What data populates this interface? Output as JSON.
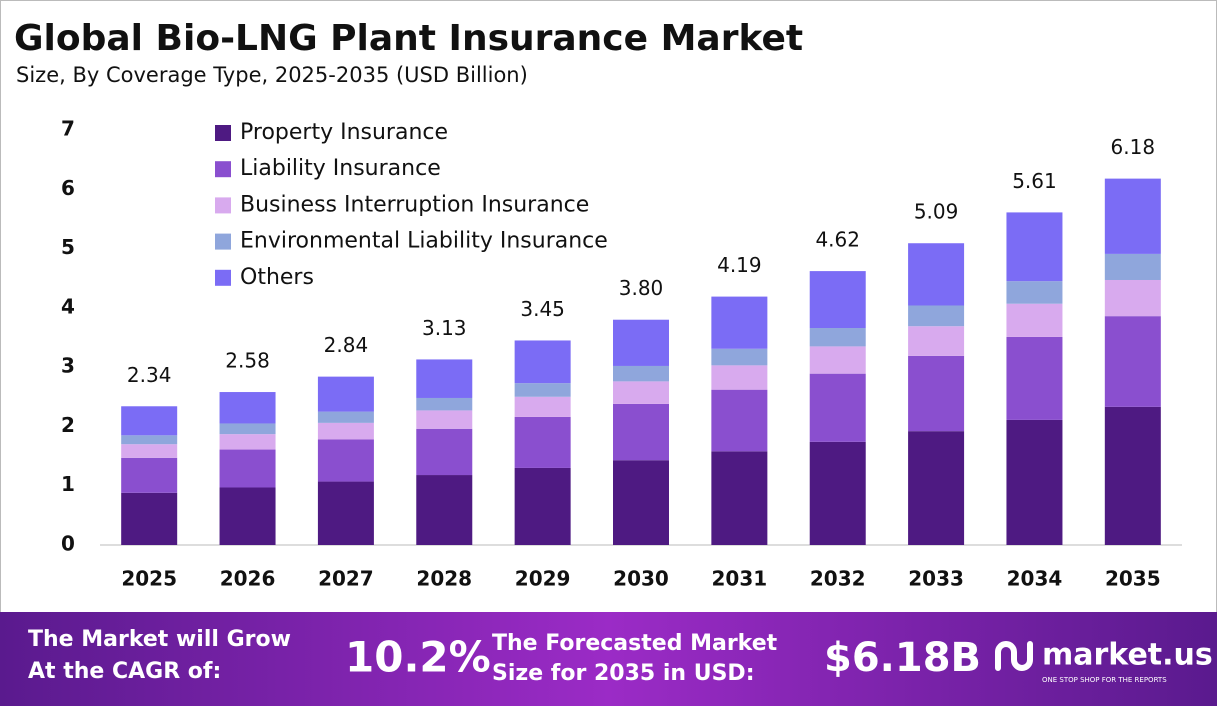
{
  "chart_data": {
    "type": "stacked-bar",
    "title": "Global Bio-LNG Plant Insurance Market",
    "subtitle": "Size, By Coverage Type, 2025-2035 (USD Billion)",
    "categories": [
      "2025",
      "2026",
      "2027",
      "2028",
      "2029",
      "2030",
      "2031",
      "2032",
      "2033",
      "2034",
      "2035"
    ],
    "series": [
      {
        "name": "Property Insurance",
        "color": "#4e1a82",
        "values": [
          0.88,
          0.97,
          1.07,
          1.18,
          1.3,
          1.43,
          1.58,
          1.74,
          1.92,
          2.11,
          2.33
        ]
      },
      {
        "name": "Liability Insurance",
        "color": "#8a4fcf",
        "values": [
          0.59,
          0.64,
          0.71,
          0.78,
          0.86,
          0.95,
          1.04,
          1.15,
          1.27,
          1.4,
          1.53
        ]
      },
      {
        "name": "Business Interruption Insurance",
        "color": "#d8aaee",
        "values": [
          0.23,
          0.26,
          0.28,
          0.31,
          0.34,
          0.38,
          0.41,
          0.46,
          0.5,
          0.56,
          0.61
        ]
      },
      {
        "name": "Environmental Liability Insurance",
        "color": "#8fa6dc",
        "values": [
          0.15,
          0.18,
          0.19,
          0.21,
          0.23,
          0.26,
          0.28,
          0.31,
          0.35,
          0.38,
          0.44
        ]
      },
      {
        "name": "Others",
        "color": "#7b6cf5",
        "values": [
          0.49,
          0.53,
          0.59,
          0.65,
          0.72,
          0.78,
          0.88,
          0.96,
          1.05,
          1.16,
          1.27
        ]
      }
    ],
    "total_labels": [
      "2.34",
      "2.58",
      "2.84",
      "3.13",
      "3.45",
      "3.80",
      "4.19",
      "4.62",
      "5.09",
      "5.61",
      "6.18"
    ],
    "ylim": [
      0,
      7
    ],
    "yticks": [
      0,
      1,
      2,
      3,
      4,
      5,
      6,
      7
    ],
    "grid": false,
    "legend": "top-left"
  },
  "footer": {
    "cagr_text": [
      "The Market will Grow",
      "At the CAGR of:"
    ],
    "cagr": "10.2%",
    "forecast_text": [
      "The Forecasted Market",
      "Size for 2035 in USD:"
    ],
    "forecast_value": "$6.18B",
    "brand": "market.us",
    "tagline": "ONE STOP SHOP FOR THE REPORTS"
  }
}
